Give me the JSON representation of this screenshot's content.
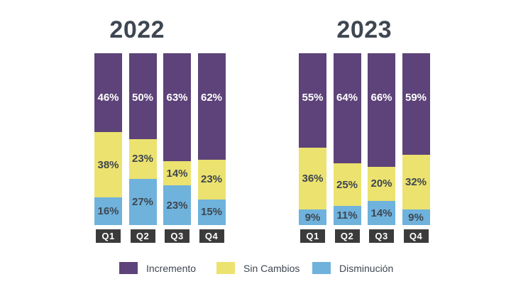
{
  "colors": {
    "background": "#ffffff",
    "title_text": "#3e4751",
    "value_label_dark": "#3d4650",
    "value_label_on_purple": "#ffffff",
    "quarter_box_bg": "#3b3b3b",
    "quarter_box_text": "#ffffff",
    "legend_text": "#3e4751",
    "incremento": "#5d4379",
    "sin_cambios": "#ece26f",
    "disminucion": "#6fb2dc"
  },
  "chart_data": [
    {
      "type": "bar",
      "stacked": true,
      "percent_stacked": true,
      "title": "2022",
      "categories": [
        "Q1",
        "Q2",
        "Q3",
        "Q4"
      ],
      "series": [
        {
          "name": "Incremento",
          "color": "#5d4379",
          "values": [
            46,
            50,
            63,
            62
          ]
        },
        {
          "name": "Sin Cambios",
          "color": "#ece26f",
          "values": [
            38,
            23,
            14,
            23
          ]
        },
        {
          "name": "Disminución",
          "color": "#6fb2dc",
          "values": [
            16,
            27,
            23,
            15
          ]
        }
      ],
      "unit": "%",
      "ylim": [
        0,
        100
      ],
      "grid": false,
      "value_labels": "inside",
      "legend_position": "bottom"
    },
    {
      "type": "bar",
      "stacked": true,
      "percent_stacked": true,
      "title": "2023",
      "categories": [
        "Q1",
        "Q2",
        "Q3",
        "Q4"
      ],
      "series": [
        {
          "name": "Incremento",
          "color": "#5d4379",
          "values": [
            55,
            64,
            66,
            59
          ]
        },
        {
          "name": "Sin Cambios",
          "color": "#ece26f",
          "values": [
            36,
            25,
            20,
            32
          ]
        },
        {
          "name": "Disminución",
          "color": "#6fb2dc",
          "values": [
            9,
            11,
            14,
            9
          ]
        }
      ],
      "unit": "%",
      "ylim": [
        0,
        100
      ],
      "grid": false,
      "value_labels": "inside",
      "legend_position": "bottom"
    }
  ],
  "legend": {
    "position": "bottom",
    "items": [
      {
        "label": "Incremento",
        "color": "#5d4379"
      },
      {
        "label": "Sin Cambios",
        "color": "#ece26f"
      },
      {
        "label": "Disminución",
        "color": "#6fb2dc"
      }
    ]
  }
}
